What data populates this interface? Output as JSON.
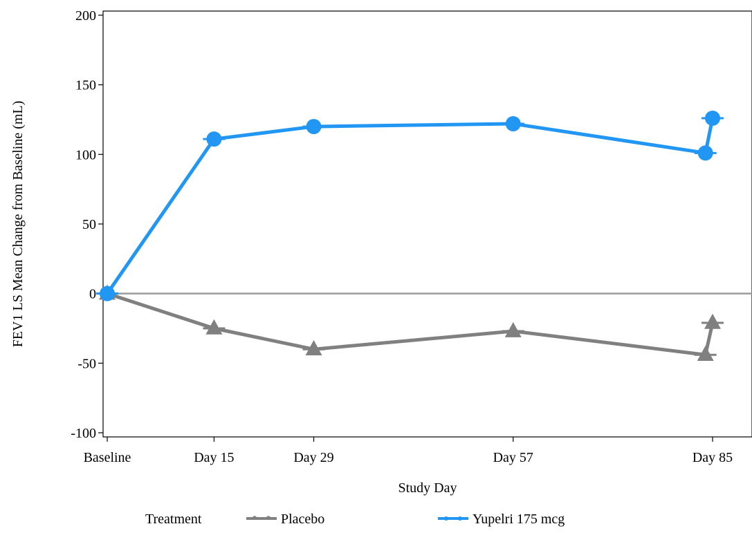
{
  "chart_data": {
    "type": "line",
    "title": "",
    "xlabel": "Study Day",
    "ylabel": "FEV1 LS Mean Change from Baseline (mL)",
    "categories": [
      "Baseline",
      "Day 15",
      "Day 29",
      "Day 57",
      "Day 85"
    ],
    "x_day": [
      0,
      15,
      29,
      57,
      85
    ],
    "ylim": [
      -100,
      200
    ],
    "yticks": [
      -100,
      -50,
      0,
      50,
      100,
      150,
      200
    ],
    "reference_line_y": 0,
    "grid": false,
    "legend": {
      "title": "Treatment",
      "position": "bottom"
    },
    "series": [
      {
        "name": "Placebo",
        "color": "#808080",
        "marker": "triangle",
        "points": [
          {
            "x": 0,
            "y": 0
          },
          {
            "x": 15,
            "y": -25
          },
          {
            "x": 29,
            "y": -40
          },
          {
            "x": 57,
            "y": -27
          },
          {
            "x": 84,
            "y": -44
          },
          {
            "x": 85,
            "y": -21
          }
        ]
      },
      {
        "name": "Yupelri 175 mcg",
        "color": "#2196F3",
        "marker": "circle",
        "points": [
          {
            "x": 0,
            "y": 0
          },
          {
            "x": 15,
            "y": 111
          },
          {
            "x": 29,
            "y": 120
          },
          {
            "x": 57,
            "y": 122
          },
          {
            "x": 84,
            "y": 101
          },
          {
            "x": 85,
            "y": 126
          }
        ]
      }
    ]
  }
}
